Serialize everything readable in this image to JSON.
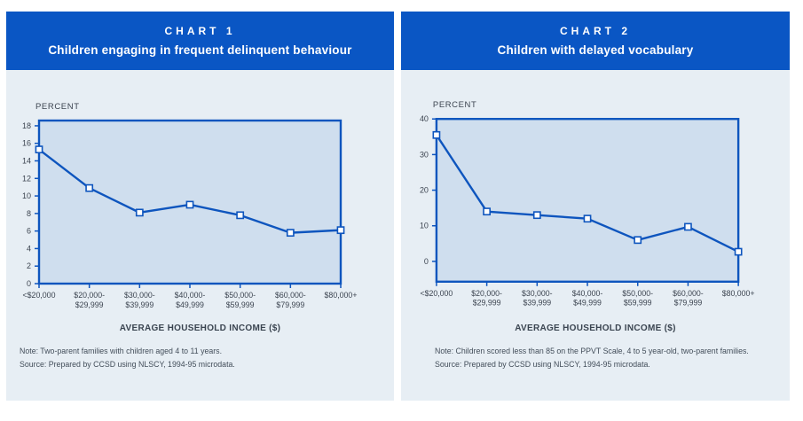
{
  "colors": {
    "header_bg": "#0a56c4",
    "header_text": "#ffffff",
    "panel_bg": "#e7eef4",
    "plot_bg": "#cfdeee",
    "line": "#0e55be",
    "marker_fill": "#ffffff",
    "axis_text": "#3c4450",
    "note_text": "#434e5a"
  },
  "charts": [
    {
      "header_label": "CHART 1",
      "header_title": "Children engaging in frequent delinquent behaviour",
      "y_axis_label": "PERCENT",
      "x_axis_title": "AVERAGE HOUSEHOLD INCOME ($)",
      "note": "Note: Two-parent families with children aged 4 to 11 years.",
      "source": "Source: Prepared by CCSD using NLSCY, 1994-95 microdata."
    },
    {
      "header_label": "CHART 2",
      "header_title": "Children with delayed vocabulary",
      "y_axis_label": "PERCENT",
      "x_axis_title": "AVERAGE HOUSEHOLD INCOME ($)",
      "note": "Note: Children scored less than 85 on the PPVT Scale, 4 to 5 year-old, two-parent families.",
      "source": "Source: Prepared by CCSD using NLSCY, 1994-95 microdata."
    }
  ],
  "chart_data": [
    {
      "type": "line",
      "title": "Children engaging in frequent delinquent behaviour",
      "categories": [
        "<$20,000",
        "$20,000-$29,999",
        "$30,000-$39,999",
        "$40,000-$49,999",
        "$50,000-$59,999",
        "$60,000-$79,999",
        "$80,000+"
      ],
      "values": [
        15.3,
        10.9,
        8.1,
        9.0,
        7.8,
        5.8,
        6.1
      ],
      "xlabel": "AVERAGE HOUSEHOLD INCOME ($)",
      "ylabel": "PERCENT",
      "ylim": [
        0,
        18.6
      ],
      "yticks": [
        0,
        2,
        4,
        6,
        8,
        10,
        12,
        14,
        16,
        18
      ],
      "grid": false,
      "legend": false,
      "marker": "open-square",
      "line_color": "#0e55be"
    },
    {
      "type": "line",
      "title": "Children with delayed vocabulary",
      "categories": [
        "<$20,000",
        "$20,000-$29,999",
        "$30,000-$39,999",
        "$40,000-$49,999",
        "$50,000-$59,999",
        "$60,000-$79,999",
        "$80,000+"
      ],
      "values": [
        35.5,
        14.0,
        13.0,
        12.0,
        6.0,
        9.7,
        2.7
      ],
      "xlabel": "AVERAGE HOUSEHOLD INCOME ($)",
      "ylabel": "PERCENT",
      "ylim": [
        -5.7,
        40
      ],
      "yticks": [
        0,
        10,
        20,
        30,
        40
      ],
      "grid": false,
      "legend": false,
      "marker": "open-square",
      "line_color": "#0e55be"
    }
  ]
}
